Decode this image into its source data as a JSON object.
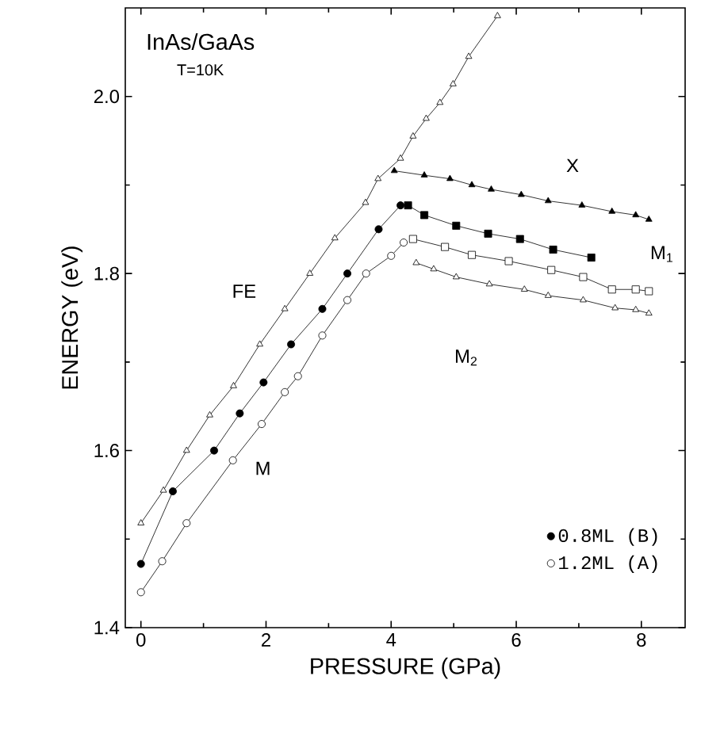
{
  "chart_data": {
    "type": "line",
    "xlabel": "PRESSURE (GPa)",
    "ylabel": "ENERGY (eV)",
    "xlim": [
      -0.25,
      8.7
    ],
    "ylim": [
      1.4,
      2.1
    ],
    "xticks": [
      0,
      2,
      4,
      6,
      8
    ],
    "yticks": [
      1.4,
      1.6,
      1.8,
      {
        "value": 2.0,
        "label": "2.0"
      }
    ],
    "legend": "bottom right",
    "grid": false,
    "annotations": [
      "InAs/GaAs",
      "T=10K",
      "FE",
      "X",
      "M$_{1}$",
      "M$_{2}$",
      "M"
    ],
    "series": [
      {
        "marker": "triangle",
        "color": "#ffffff",
        "x": [
          0,
          0.36,
          0.73,
          1.1,
          1.48,
          1.9,
          2.3,
          2.7,
          3.1,
          3.59,
          3.79,
          4.15,
          4.35,
          4.56,
          4.78,
          4.99,
          5.24,
          5.7
        ],
        "values": [
          1.518,
          1.555,
          1.6,
          1.64,
          1.673,
          1.72,
          1.76,
          1.8,
          1.84,
          1.88,
          1.907,
          1.93,
          1.955,
          1.975,
          1.993,
          2.014,
          2.045,
          2.091
        ]
      },
      {
        "marker": "triangle",
        "color": "#000000",
        "x": [
          4.05,
          4.53,
          4.94,
          5.29,
          5.6,
          6.08,
          6.51,
          7.05,
          7.53,
          7.91,
          8.12
        ],
        "values": [
          1.916,
          1.911,
          1.907,
          1.9,
          1.895,
          1.889,
          1.882,
          1.877,
          1.87,
          1.866,
          1.861
        ]
      },
      {
        "name": "0.8ML (B)",
        "marker": "circle",
        "color": "#000000",
        "x": [
          0,
          0.51,
          1.17,
          1.58,
          1.96,
          2.4,
          2.9,
          3.3,
          3.8,
          4.15
        ],
        "values": [
          1.472,
          1.554,
          1.6,
          1.642,
          1.677,
          1.72,
          1.76,
          1.8,
          1.85,
          1.877
        ]
      },
      {
        "marker": "square",
        "color": "#000000",
        "x": [
          4.27,
          4.53,
          5.04,
          5.55,
          6.06,
          6.59,
          7.2
        ],
        "values": [
          1.877,
          1.866,
          1.854,
          1.845,
          1.839,
          1.827,
          1.818
        ]
      },
      {
        "name": "1.2ML (A)",
        "marker": "circle",
        "color": "#ffffff",
        "x": [
          0,
          0.34,
          0.73,
          1.47,
          1.93,
          2.3,
          2.51,
          2.9,
          3.3,
          3.6,
          4.0,
          4.2
        ],
        "values": [
          1.44,
          1.475,
          1.518,
          1.589,
          1.63,
          1.666,
          1.684,
          1.73,
          1.77,
          1.8,
          1.82,
          1.835
        ]
      },
      {
        "marker": "square",
        "color": "#ffffff",
        "x": [
          4.35,
          4.86,
          5.29,
          5.88,
          6.56,
          7.07,
          7.53,
          7.91,
          8.12
        ],
        "values": [
          1.839,
          1.83,
          1.821,
          1.814,
          1.804,
          1.796,
          1.782,
          1.782,
          1.78
        ]
      },
      {
        "marker": "triangle",
        "color": "#ffffff",
        "x": [
          4.4,
          4.68,
          5.04,
          5.57,
          6.13,
          6.51,
          7.07,
          7.58,
          7.91,
          8.12
        ],
        "values": [
          1.812,
          1.805,
          1.796,
          1.788,
          1.782,
          1.775,
          1.77,
          1.761,
          1.759,
          1.755
        ]
      }
    ]
  }
}
